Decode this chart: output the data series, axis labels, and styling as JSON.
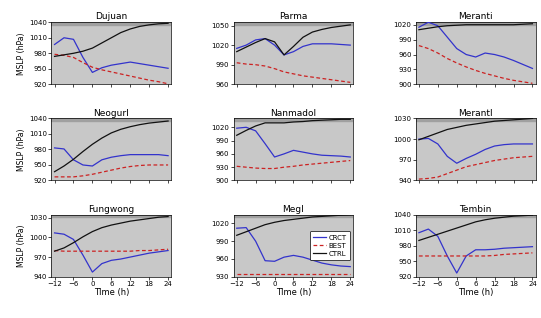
{
  "titles": [
    "Dujuan",
    "Parma",
    "Meranti",
    "Neogurl",
    "Nanmadol",
    "MerantI",
    "Fungwong",
    "Megl",
    "Tembin"
  ],
  "colors": {
    "CRCT": "#3333cc",
    "BEST": "#cc2222",
    "CTRL": "#111111"
  },
  "x": [
    -12,
    -9,
    -6,
    -3,
    0,
    3,
    6,
    9,
    12,
    15,
    18,
    21,
    24
  ],
  "panels": {
    "Dujuan": {
      "ylim": [
        920,
        1040
      ],
      "yticks": [
        920,
        950,
        980,
        1010,
        1040
      ],
      "CRCT": [
        997,
        1010,
        1007,
        972,
        943,
        952,
        957,
        960,
        963,
        960,
        957,
        954,
        951
      ],
      "BEST": [
        978,
        976,
        972,
        962,
        953,
        948,
        944,
        940,
        936,
        932,
        928,
        925,
        921
      ],
      "CTRL": [
        974,
        977,
        980,
        984,
        990,
        1000,
        1010,
        1020,
        1027,
        1032,
        1035,
        1037,
        1038
      ]
    },
    "Parma": {
      "ylim": [
        960,
        1055
      ],
      "yticks": [
        960,
        990,
        1020,
        1050
      ],
      "CRCT": [
        1015,
        1020,
        1028,
        1030,
        1020,
        1005,
        1010,
        1018,
        1022,
        1022,
        1022,
        1021,
        1020
      ],
      "BEST": [
        993,
        991,
        990,
        988,
        984,
        979,
        976,
        973,
        971,
        969,
        967,
        965,
        963
      ],
      "CTRL": [
        1010,
        1017,
        1024,
        1030,
        1025,
        1005,
        1018,
        1032,
        1040,
        1044,
        1047,
        1049,
        1051
      ]
    },
    "Meranti": {
      "ylim": [
        900,
        1025
      ],
      "yticks": [
        900,
        930,
        960,
        990,
        1020
      ],
      "CRCT": [
        1015,
        1025,
        1018,
        995,
        972,
        960,
        955,
        963,
        960,
        955,
        948,
        940,
        932
      ],
      "BEST": [
        978,
        972,
        963,
        952,
        943,
        935,
        928,
        922,
        917,
        912,
        908,
        905,
        902
      ],
      "CTRL": [
        1010,
        1013,
        1016,
        1018,
        1019,
        1020,
        1020,
        1020,
        1020,
        1020,
        1020,
        1021,
        1022
      ]
    },
    "Neogurl": {
      "ylim": [
        920,
        1040
      ],
      "yticks": [
        920,
        950,
        980,
        1010,
        1040
      ],
      "CRCT": [
        983,
        981,
        960,
        950,
        948,
        960,
        965,
        968,
        970,
        970,
        970,
        970,
        968
      ],
      "BEST": [
        927,
        927,
        927,
        929,
        932,
        936,
        940,
        944,
        947,
        949,
        950,
        950,
        950
      ],
      "CTRL": [
        937,
        948,
        961,
        976,
        990,
        1002,
        1012,
        1019,
        1024,
        1028,
        1031,
        1033,
        1035
      ]
    },
    "Nanmadol": {
      "ylim": [
        900,
        1040
      ],
      "yticks": [
        900,
        930,
        960,
        990,
        1020
      ],
      "CRCT": [
        1018,
        1020,
        1012,
        983,
        953,
        960,
        968,
        964,
        960,
        957,
        956,
        955,
        953
      ],
      "BEST": [
        932,
        930,
        928,
        927,
        927,
        930,
        932,
        935,
        937,
        939,
        941,
        943,
        945
      ],
      "CTRL": [
        1002,
        1013,
        1023,
        1030,
        1030,
        1030,
        1032,
        1033,
        1035,
        1036,
        1037,
        1038,
        1038
      ]
    },
    "MerantI": {
      "ylim": [
        940,
        1030
      ],
      "yticks": [
        940,
        970,
        1000,
        1030
      ],
      "CRCT": [
        1000,
        1001,
        993,
        975,
        965,
        972,
        978,
        985,
        990,
        992,
        993,
        993,
        993
      ],
      "BEST": [
        942,
        943,
        945,
        950,
        955,
        960,
        963,
        966,
        969,
        971,
        973,
        974,
        975
      ],
      "CTRL": [
        999,
        1004,
        1009,
        1014,
        1017,
        1020,
        1022,
        1024,
        1026,
        1027,
        1028,
        1029,
        1030
      ]
    },
    "Fungwong": {
      "ylim": [
        940,
        1035
      ],
      "yticks": [
        940,
        970,
        1000,
        1030
      ],
      "CRCT": [
        1007,
        1005,
        997,
        973,
        947,
        960,
        965,
        967,
        970,
        973,
        976,
        978,
        980
      ],
      "BEST": [
        980,
        979,
        979,
        979,
        979,
        979,
        979,
        979,
        979,
        980,
        980,
        981,
        982
      ],
      "CTRL": [
        979,
        984,
        992,
        1001,
        1009,
        1015,
        1019,
        1022,
        1025,
        1027,
        1029,
        1031,
        1032
      ]
    },
    "Megl": {
      "ylim": [
        930,
        1035
      ],
      "yticks": [
        930,
        960,
        990,
        1020
      ],
      "CRCT": [
        1012,
        1013,
        990,
        957,
        956,
        963,
        966,
        963,
        958,
        953,
        950,
        948,
        947
      ],
      "BEST": [
        935,
        935,
        935,
        935,
        935,
        935,
        935,
        935,
        935,
        935,
        935,
        935,
        935
      ],
      "CTRL": [
        1000,
        1006,
        1012,
        1018,
        1022,
        1025,
        1027,
        1029,
        1031,
        1032,
        1033,
        1034,
        1035
      ]
    },
    "Tembin": {
      "ylim": [
        920,
        1040
      ],
      "yticks": [
        920,
        950,
        980,
        1010,
        1040
      ],
      "CRCT": [
        1005,
        1012,
        998,
        960,
        927,
        960,
        972,
        972,
        973,
        975,
        976,
        977,
        978
      ],
      "BEST": [
        960,
        960,
        960,
        960,
        960,
        960,
        960,
        960,
        961,
        963,
        964,
        965,
        966
      ],
      "CTRL": [
        990,
        996,
        1002,
        1008,
        1014,
        1020,
        1026,
        1030,
        1033,
        1035,
        1037,
        1038,
        1039
      ]
    }
  },
  "xticks": [
    -12,
    -6,
    0,
    6,
    12,
    18,
    24
  ],
  "xlabel": "TIme (h)",
  "ylabel": "MSLP (hPa)",
  "legend_labels": [
    "CRCT",
    "BEST",
    "CTRL"
  ],
  "legend_colors": [
    "#3333cc",
    "#cc2222",
    "#111111"
  ],
  "legend_linestyles": [
    "-",
    "--",
    "-"
  ],
  "panel_bg": "#c8c8c8",
  "top_band_color": "#a0a0a0"
}
